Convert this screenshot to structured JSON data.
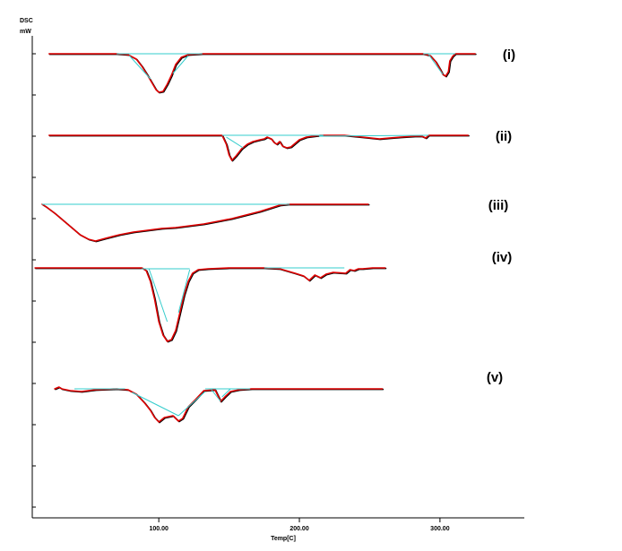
{
  "chart_data": {
    "type": "line",
    "title": "",
    "ylabel_lines": [
      "DSC",
      "mW"
    ],
    "xlabel": "Temp[C]",
    "xticks": [
      100.0,
      200.0,
      300.0
    ],
    "xtick_labels": [
      "100.00",
      "200.00",
      "300.00"
    ],
    "xlim": [
      10,
      360
    ],
    "y_units": "mW (offset, unlabeled)",
    "colors": {
      "curve": "#e00000",
      "baseline": "#33cccc",
      "axis": "#000000",
      "trace_dark": "#000000"
    },
    "series": [
      {
        "name": "(i)",
        "offset": 60,
        "points": [
          [
            22,
            0
          ],
          [
            70,
            0
          ],
          [
            78,
            1
          ],
          [
            84,
            6
          ],
          [
            88,
            14
          ],
          [
            92,
            24
          ],
          [
            95,
            32
          ],
          [
            98,
            40
          ],
          [
            100,
            43
          ],
          [
            103,
            42
          ],
          [
            106,
            34
          ],
          [
            109,
            24
          ],
          [
            112,
            12
          ],
          [
            116,
            4
          ],
          [
            121,
            1
          ],
          [
            131,
            0
          ],
          [
            288,
            0
          ],
          [
            293,
            2
          ],
          [
            297,
            9
          ],
          [
            300,
            17
          ],
          [
            302,
            23
          ],
          [
            304,
            25
          ],
          [
            306,
            20
          ],
          [
            307,
            8
          ],
          [
            309,
            3
          ],
          [
            311,
            0
          ],
          [
            325,
            0
          ]
        ],
        "baselines": [
          [
            [
              70,
              0
            ],
            [
              131,
              0
            ]
          ],
          [
            [
              79,
              2
            ],
            [
              94,
              28
            ]
          ],
          [
            [
              110,
              22
            ],
            [
              121,
              2
            ]
          ],
          [
            [
              288,
              0
            ],
            [
              311,
              0
            ]
          ],
          [
            [
              292,
              1
            ],
            [
              302,
              23
            ]
          ]
        ]
      },
      {
        "name": "(ii)",
        "offset": 151,
        "points": [
          [
            22,
            0
          ],
          [
            145,
            0
          ],
          [
            148,
            10
          ],
          [
            150,
            22
          ],
          [
            152,
            28
          ],
          [
            155,
            23
          ],
          [
            159,
            15
          ],
          [
            163,
            10
          ],
          [
            167,
            7
          ],
          [
            172,
            5
          ],
          [
            175,
            4
          ],
          [
            177,
            2
          ],
          [
            180,
            4
          ],
          [
            182,
            8
          ],
          [
            184,
            10
          ],
          [
            186,
            7
          ],
          [
            188,
            12
          ],
          [
            191,
            14
          ],
          [
            194,
            13
          ],
          [
            197,
            9
          ],
          [
            200,
            5
          ],
          [
            205,
            2
          ],
          [
            215,
            0
          ],
          [
            232,
            0
          ],
          [
            245,
            2
          ],
          [
            257,
            4
          ],
          [
            264,
            3
          ],
          [
            272,
            2
          ],
          [
            282,
            1
          ],
          [
            287,
            1
          ],
          [
            290,
            3
          ],
          [
            292,
            0
          ],
          [
            320,
            0
          ]
        ],
        "baselines": [
          [
            [
              145,
              0
            ],
            [
              217,
              0
            ]
          ],
          [
            [
              148,
              2
            ],
            [
              160,
              14
            ]
          ],
          [
            [
              214,
              1
            ],
            [
              292,
              0
            ]
          ]
        ]
      },
      {
        "name": "(iii)",
        "offset": 228,
        "points": [
          [
            17,
            0
          ],
          [
            20,
            3
          ],
          [
            26,
            10
          ],
          [
            32,
            18
          ],
          [
            38,
            26
          ],
          [
            44,
            34
          ],
          [
            50,
            39
          ],
          [
            55,
            41
          ],
          [
            62,
            38
          ],
          [
            72,
            34
          ],
          [
            82,
            31
          ],
          [
            92,
            29
          ],
          [
            102,
            27
          ],
          [
            112,
            26
          ],
          [
            122,
            24
          ],
          [
            132,
            22
          ],
          [
            142,
            19
          ],
          [
            152,
            16
          ],
          [
            162,
            12
          ],
          [
            172,
            8
          ],
          [
            180,
            4
          ],
          [
            186,
            1
          ],
          [
            192,
            0
          ],
          [
            225,
            0
          ],
          [
            249,
            0
          ]
        ],
        "baselines": [
          [
            [
              17,
              0
            ],
            [
              193,
              0
            ]
          ]
        ]
      },
      {
        "name": "(iv)",
        "offset": 299,
        "points": [
          [
            12,
            0
          ],
          [
            88,
            0
          ],
          [
            91,
            3
          ],
          [
            94,
            15
          ],
          [
            97,
            35
          ],
          [
            100,
            60
          ],
          [
            103,
            75
          ],
          [
            106,
            82
          ],
          [
            109,
            80
          ],
          [
            112,
            70
          ],
          [
            115,
            50
          ],
          [
            118,
            30
          ],
          [
            121,
            15
          ],
          [
            124,
            6
          ],
          [
            128,
            2
          ],
          [
            135,
            1
          ],
          [
            150,
            0
          ],
          [
            175,
            0
          ],
          [
            186,
            1
          ],
          [
            197,
            6
          ],
          [
            203,
            9
          ],
          [
            207,
            14
          ],
          [
            211,
            8
          ],
          [
            215,
            11
          ],
          [
            219,
            7
          ],
          [
            224,
            5
          ],
          [
            233,
            6
          ],
          [
            236,
            2
          ],
          [
            239,
            3
          ],
          [
            242,
            1
          ],
          [
            245,
            1
          ],
          [
            252,
            0
          ],
          [
            261,
            0
          ]
        ],
        "baselines": [
          [
            [
              88,
              1
            ],
            [
              122,
              1
            ]
          ],
          [
            [
              93,
              1
            ],
            [
              106,
              60
            ]
          ],
          [
            [
              114,
              50
            ],
            [
              122,
              2
            ]
          ],
          [
            [
              175,
              0
            ],
            [
              232,
              0
            ]
          ]
        ]
      },
      {
        "name": "(v)",
        "offset": 434,
        "points": [
          [
            26,
            0
          ],
          [
            29,
            -2
          ],
          [
            31,
            0
          ],
          [
            37,
            2
          ],
          [
            45,
            3
          ],
          [
            55,
            1
          ],
          [
            70,
            0
          ],
          [
            78,
            1
          ],
          [
            84,
            6
          ],
          [
            90,
            16
          ],
          [
            94,
            24
          ],
          [
            97,
            32
          ],
          [
            100,
            37
          ],
          [
            104,
            32
          ],
          [
            110,
            30
          ],
          [
            114,
            36
          ],
          [
            117,
            33
          ],
          [
            121,
            20
          ],
          [
            126,
            12
          ],
          [
            132,
            2
          ],
          [
            140,
            1
          ],
          [
            144,
            14
          ],
          [
            147,
            9
          ],
          [
            151,
            3
          ],
          [
            157,
            1
          ],
          [
            166,
            0
          ],
          [
            259,
            0
          ]
        ],
        "baselines": [
          [
            [
              40,
              0
            ],
            [
              76,
              0
            ]
          ],
          [
            [
              81,
              4
            ],
            [
              114,
              30
            ]
          ],
          [
            [
              114,
              30
            ],
            [
              133,
              3
            ]
          ],
          [
            [
              133,
              0
            ],
            [
              165,
              0
            ]
          ],
          [
            [
              137,
              0
            ],
            [
              144,
              14
            ]
          ],
          [
            [
              145,
              9
            ],
            [
              151,
              0
            ]
          ]
        ]
      }
    ]
  }
}
